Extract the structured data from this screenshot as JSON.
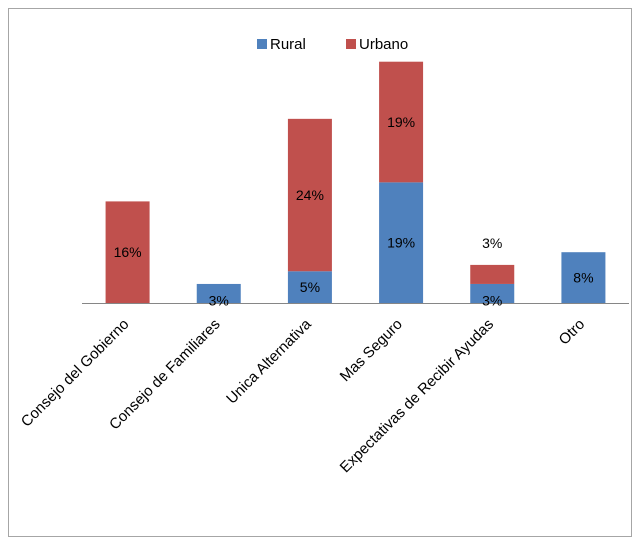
{
  "chart_data": {
    "type": "bar",
    "stacked": true,
    "categories": [
      "Consejo del Gobierno",
      "Consejo de Familiares",
      "Unica Alternativa",
      "Mas Seguro",
      "Expectativas de Recibir Ayudas",
      "Otro"
    ],
    "series": [
      {
        "name": "Rural",
        "color": "#4f81bd",
        "values": [
          0,
          3,
          5,
          19,
          3,
          8
        ],
        "labels": [
          "",
          "3%",
          "5%",
          "19%",
          "3%",
          "8%"
        ]
      },
      {
        "name": "Urbano",
        "color": "#c0504d",
        "values": [
          16,
          0,
          24,
          19,
          3,
          0
        ],
        "labels": [
          "16%",
          "",
          "24%",
          "19%",
          "3%",
          ""
        ]
      }
    ],
    "ylim": [
      0,
      40
    ],
    "legend_position": "top",
    "grid": false
  }
}
